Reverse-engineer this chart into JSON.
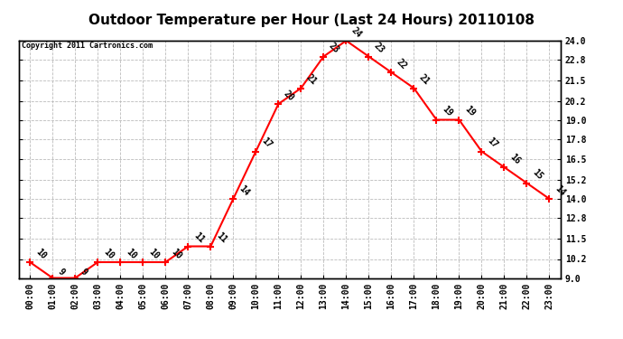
{
  "title": "Outdoor Temperature per Hour (Last 24 Hours) 20110108",
  "copyright": "Copyright 2011 Cartronics.com",
  "hours": [
    "00:00",
    "01:00",
    "02:00",
    "03:00",
    "04:00",
    "05:00",
    "06:00",
    "07:00",
    "08:00",
    "09:00",
    "10:00",
    "11:00",
    "12:00",
    "13:00",
    "14:00",
    "15:00",
    "16:00",
    "17:00",
    "18:00",
    "19:00",
    "20:00",
    "21:00",
    "22:00",
    "23:00"
  ],
  "values": [
    10,
    9,
    9,
    10,
    10,
    10,
    10,
    11,
    11,
    14,
    17,
    20,
    21,
    23,
    24,
    23,
    22,
    21,
    19,
    19,
    17,
    16,
    15,
    14
  ],
  "ylim": [
    9.0,
    24.0
  ],
  "yticks": [
    9.0,
    10.2,
    11.5,
    12.8,
    14.0,
    15.2,
    16.5,
    17.8,
    19.0,
    20.2,
    21.5,
    22.8,
    24.0
  ],
  "ytick_labels": [
    "9.0",
    "10.2",
    "11.5",
    "12.8",
    "14.0",
    "15.2",
    "16.5",
    "17.8",
    "19.0",
    "20.2",
    "21.5",
    "22.8",
    "24.0"
  ],
  "line_color": "red",
  "marker_color": "red",
  "bg_color": "#ffffff",
  "grid_color": "#bbbbbb",
  "title_fontsize": 11,
  "label_fontsize": 7,
  "annotation_fontsize": 7,
  "copyright_fontsize": 6
}
